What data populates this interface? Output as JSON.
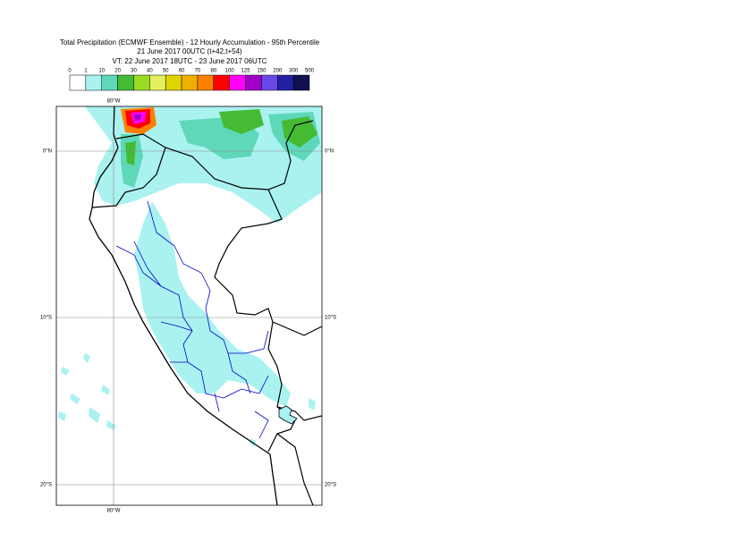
{
  "header": {
    "title": [
      "Total Precipitation (ECMWF Ensemble) - 12 Hourly Accumulation - 95th Percentile",
      "21 June 2017 00UTC (t+42,t+54)",
      "VT: 22 June 2017 18UTC - 23 June 2017 06UTC"
    ]
  },
  "legend": {
    "labels": [
      "0",
      "1",
      "10",
      "20",
      "30",
      "40",
      "50",
      "60",
      "70",
      "80",
      "100",
      "125",
      "150",
      "200",
      "300",
      "500"
    ],
    "colors": [
      "#ffffff",
      "#aaf2f0",
      "#5ed8b8",
      "#44bb33",
      "#99dd22",
      "#e4f060",
      "#e0d400",
      "#f0b000",
      "#ff8000",
      "#ff0000",
      "#ff00ff",
      "#a000c8",
      "#6a48e8",
      "#2222a0",
      "#101050"
    ]
  },
  "map": {
    "lon_labels": [
      "80°W"
    ],
    "lat_labels": [
      "0°N",
      "10°S",
      "20°S"
    ]
  }
}
